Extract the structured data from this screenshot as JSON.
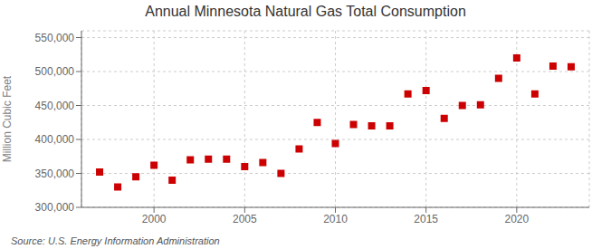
{
  "chart_data": {
    "type": "scatter",
    "title": "Annual Minnesota Natural Gas Total Consumption",
    "y_label": "Million Cubic Feet",
    "annotations": [
      "Source: U.S. Energy Information Administration"
    ],
    "x": [
      1997,
      1998,
      1999,
      2000,
      2001,
      2002,
      2003,
      2004,
      2005,
      2006,
      2007,
      2008,
      2009,
      2010,
      2011,
      2012,
      2013,
      2014,
      2015,
      2016,
      2017,
      2018,
      2019,
      2020,
      2021,
      2022,
      2023
    ],
    "values": [
      352000,
      330000,
      345000,
      362000,
      340000,
      370000,
      371000,
      371000,
      360000,
      366000,
      350000,
      386000,
      425000,
      394000,
      422000,
      420000,
      420000,
      467000,
      472000,
      431000,
      450000,
      451000,
      490000,
      520000,
      467000,
      508000,
      507000
    ],
    "color": "#cc0000",
    "marker": "square",
    "xlim": [
      1996,
      2024
    ],
    "ylim": [
      300000,
      560000
    ],
    "xticks": [
      2000,
      2005,
      2010,
      2015,
      2020
    ],
    "yticks": [
      {
        "value": 300000,
        "label": "300,000"
      },
      {
        "value": 350000,
        "label": "350,000"
      },
      {
        "value": 400000,
        "label": "400,000"
      },
      {
        "value": 450000,
        "label": "450,000"
      },
      {
        "value": 500000,
        "label": "500,000"
      },
      {
        "value": 550000,
        "label": "550,000"
      }
    ],
    "grid": true
  }
}
